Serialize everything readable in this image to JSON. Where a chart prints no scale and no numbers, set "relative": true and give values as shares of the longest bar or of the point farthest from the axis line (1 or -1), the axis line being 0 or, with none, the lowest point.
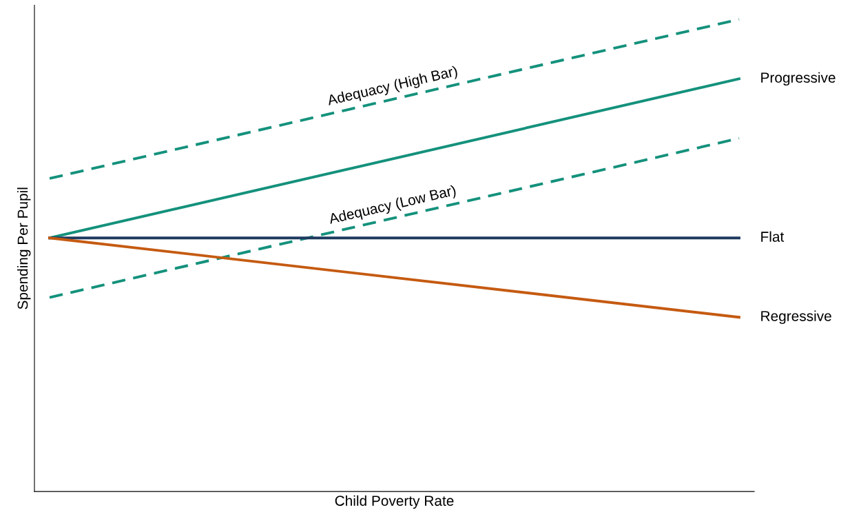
{
  "chart_data": {
    "type": "line",
    "relative": true,
    "xlabel": "Child Poverty Rate",
    "ylabel": "Spending Per Pupil",
    "categories": [
      null,
      null
    ],
    "series": [
      {
        "name": "Adequacy (High Bar)",
        "color": "#14917c",
        "values": [
          0.663,
          1.0
        ],
        "line_style": "dashed"
      },
      {
        "name": "Progressive",
        "color": "#14917c",
        "values": [
          0.537,
          0.874
        ],
        "line_style": "solid"
      },
      {
        "name": "Adequacy (Low Bar)",
        "color": "#14917c",
        "values": [
          0.411,
          0.748
        ],
        "line_style": "dashed"
      },
      {
        "name": "Flat",
        "color": "#1f3a60",
        "values": [
          0.537,
          0.537
        ],
        "line_style": "solid"
      },
      {
        "name": "Regressive",
        "color": "#c55a11",
        "values": [
          0.537,
          0.369
        ],
        "line_style": "solid"
      }
    ],
    "grid": false,
    "legend": false,
    "marker": "none",
    "tick_labels": false
  }
}
